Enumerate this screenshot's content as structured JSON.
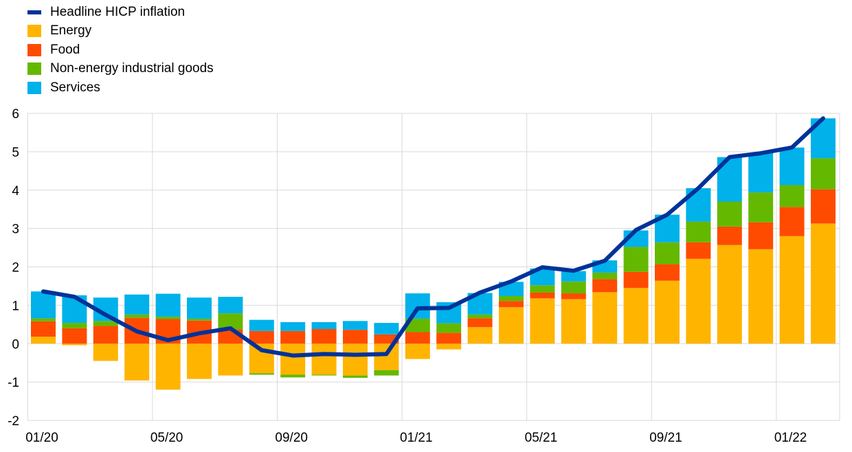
{
  "chart_data": {
    "type": "bar",
    "stacked": true,
    "categories": [
      "01/20",
      "02/20",
      "03/20",
      "04/20",
      "05/20",
      "06/20",
      "07/20",
      "08/20",
      "09/20",
      "10/20",
      "11/20",
      "12/20",
      "01/21",
      "02/21",
      "03/21",
      "04/21",
      "05/21",
      "06/21",
      "07/21",
      "08/21",
      "09/21",
      "10/21",
      "11/21",
      "12/21",
      "01/22",
      "02/22"
    ],
    "x_tick_labels": [
      "01/20",
      "05/20",
      "09/20",
      "01/21",
      "05/21",
      "09/21",
      "01/22"
    ],
    "y_tick_labels": [
      "-2",
      "-1",
      "0",
      "1",
      "2",
      "3",
      "4",
      "5",
      "6"
    ],
    "ylim": [
      -2,
      6
    ],
    "grid": true,
    "legend_position": "top-left",
    "series": [
      {
        "name": "Energy",
        "type": "bar",
        "color": "#FFB400",
        "values": [
          0.18,
          -0.04,
          -0.45,
          -0.96,
          -1.2,
          -0.92,
          -0.83,
          -0.77,
          -0.81,
          -0.81,
          -0.83,
          -0.69,
          -0.4,
          -0.15,
          0.43,
          0.95,
          1.18,
          1.16,
          1.34,
          1.45,
          1.64,
          2.21,
          2.57,
          2.46,
          2.8,
          3.13
        ]
      },
      {
        "name": "Food",
        "type": "bar",
        "color": "#FF4B00",
        "values": [
          0.4,
          0.4,
          0.46,
          0.67,
          0.64,
          0.6,
          0.37,
          0.33,
          0.33,
          0.38,
          0.36,
          0.24,
          0.3,
          0.28,
          0.23,
          0.16,
          0.15,
          0.15,
          0.34,
          0.42,
          0.43,
          0.43,
          0.48,
          0.7,
          0.76,
          0.89
        ]
      },
      {
        "name": "Non-energy industrial goods",
        "type": "bar",
        "color": "#65B800",
        "values": [
          0.08,
          0.14,
          0.13,
          0.09,
          0.06,
          0.05,
          0.42,
          -0.04,
          -0.07,
          -0.02,
          -0.06,
          -0.14,
          0.35,
          0.25,
          0.1,
          0.13,
          0.19,
          0.31,
          0.17,
          0.65,
          0.57,
          0.54,
          0.65,
          0.78,
          0.57,
          0.81
        ]
      },
      {
        "name": "Services",
        "type": "bar",
        "color": "#00B1EA",
        "values": [
          0.7,
          0.72,
          0.61,
          0.52,
          0.6,
          0.55,
          0.43,
          0.29,
          0.23,
          0.18,
          0.23,
          0.3,
          0.66,
          0.55,
          0.56,
          0.37,
          0.44,
          0.27,
          0.32,
          0.43,
          0.72,
          0.87,
          1.16,
          1.03,
          0.98,
          1.04
        ]
      },
      {
        "name": "Headline HICP inflation",
        "type": "line",
        "color": "#003299",
        "values": [
          1.36,
          1.22,
          0.75,
          0.32,
          0.09,
          0.27,
          0.4,
          -0.17,
          -0.31,
          -0.27,
          -0.29,
          -0.27,
          0.92,
          0.93,
          1.33,
          1.62,
          1.99,
          1.9,
          2.16,
          2.96,
          3.36,
          4.05,
          4.86,
          4.96,
          5.11,
          5.87
        ]
      }
    ]
  }
}
